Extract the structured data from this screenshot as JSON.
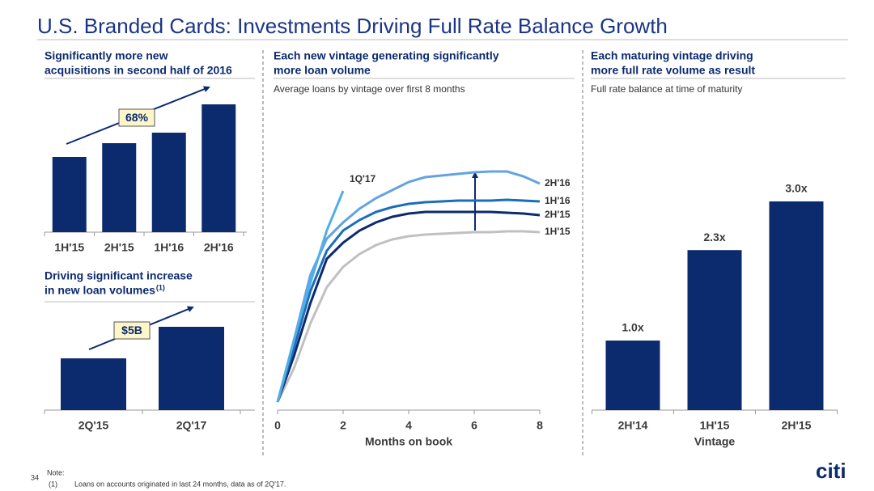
{
  "title": "U.S. Branded Cards: Investments Driving Full Rate Balance Growth",
  "chart_data": [
    {
      "type": "bar",
      "title": [
        "Significantly more new",
        "acquisitions in second half of 2016"
      ],
      "categories": [
        "1H'15",
        "2H'15",
        "1H'16",
        "2H'16"
      ],
      "values": [
        93,
        110,
        123,
        158
      ],
      "color": "#0c2a6e",
      "annotation": "68%"
    },
    {
      "type": "bar",
      "title": [
        "Driving significant increase",
        "in new loan volumes"
      ],
      "title_note": "(1)",
      "categories": [
        "2Q'15",
        "2Q'17"
      ],
      "values": [
        8.2,
        13.2
      ],
      "color": "#0c2a6e",
      "annotation": "$5B"
    },
    {
      "type": "line",
      "title": [
        "Each new vintage generating significantly",
        "more loan volume"
      ],
      "subtitle": "Average loans by vintage over first 8 months",
      "x": [
        0,
        0.5,
        1,
        1.5,
        2,
        2.5,
        3,
        3.5,
        4,
        4.5,
        5,
        5.5,
        6,
        6.5,
        7,
        7.5,
        8
      ],
      "xlim": [
        0,
        8
      ],
      "xticks": [
        0,
        2,
        4,
        6,
        8
      ],
      "xlabel": "Months on book",
      "series": [
        {
          "name": "1Q'17",
          "color": "#4fb0e8",
          "values": [
            10,
            87,
            157,
            222,
            271,
            null,
            null,
            null,
            null,
            null,
            null,
            null,
            null,
            null,
            null,
            null,
            null
          ]
        },
        {
          "name": "2H'16",
          "color": "#62a3e3",
          "values": [
            10,
            87,
            167,
            212,
            232,
            249,
            262,
            272,
            282,
            288,
            290,
            292,
            294,
            295,
            295,
            289,
            280
          ]
        },
        {
          "name": "1H'16",
          "color": "#1c6eb8",
          "values": [
            10,
            77,
            147,
            197,
            222,
            235,
            245,
            251,
            255,
            257,
            258,
            259,
            259,
            259,
            260,
            259,
            258
          ]
        },
        {
          "name": "2H'15",
          "color": "#0c2a6e",
          "values": [
            10,
            67,
            132,
            187,
            207,
            222,
            232,
            239,
            243,
            245,
            245,
            245,
            245,
            245,
            244,
            243,
            241
          ]
        },
        {
          "name": "1H'15",
          "color": "#c0c0c0",
          "values": [
            10,
            52,
            107,
            152,
            177,
            193,
            204,
            211,
            215,
            217,
            218,
            219,
            220,
            220,
            221,
            221,
            220
          ]
        }
      ]
    },
    {
      "type": "bar",
      "title": [
        "Each maturing vintage driving",
        "more full rate volume as result"
      ],
      "subtitle": "Full rate balance at time of maturity",
      "categories": [
        "2H'14",
        "1H'15",
        "2H'15"
      ],
      "values": [
        1.0,
        2.3,
        3.0
      ],
      "value_labels": [
        "1.0x",
        "2.3x",
        "3.0x"
      ],
      "xlabel": "Vintage",
      "color": "#0c2a6e"
    }
  ],
  "footer": {
    "page": "34",
    "note_label": "Note:",
    "note_number": "(1)",
    "note_text": "Loans on accounts originated in last 24 months, data as of 2Q'17.",
    "logo": "citi"
  }
}
